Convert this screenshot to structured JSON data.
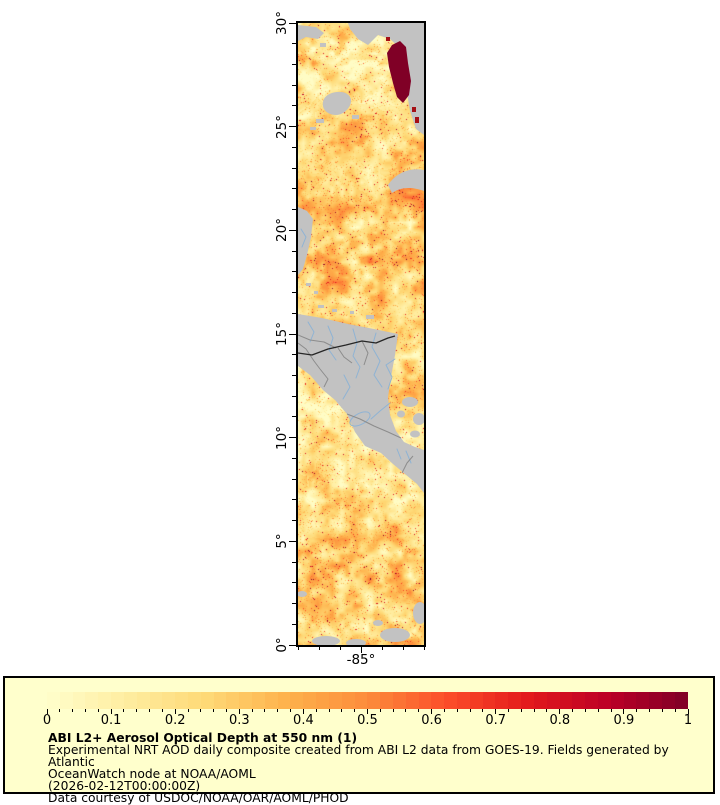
{
  "map": {
    "lat_tick_values": [
      30,
      25,
      20,
      15,
      10,
      5,
      0
    ],
    "lat_tick_labels": [
      "30°",
      "25°",
      "20°",
      "15°",
      "10°",
      "5°",
      "0°"
    ],
    "lat_minor_step_deg": 1,
    "lat_range": [
      0,
      30
    ],
    "lon_range": [
      -88,
      -82
    ],
    "lon_minor_tick_values": [
      -88,
      -87,
      -86,
      -85,
      -84,
      -83,
      -82
    ],
    "lon_labeled_tick_value": -85,
    "lon_tick_label": "-85°",
    "colors": {
      "land": "#c2c2c2",
      "no_data_cloud": "#b8b8b8",
      "country_border": "#8c8c8c",
      "dark_border": "#262626",
      "river": "#8fb3d4",
      "axis": "#000000",
      "high_aod_patch": "#800026",
      "high_aod_patch2": "#a50f15"
    }
  },
  "legend": {
    "background": "#ffffcc",
    "border_color": "#000000",
    "title": "ABI L2+ Aerosol Optical Depth at 550 nm (1)",
    "lines": [
      "Experimental NRT AOD daily composite created from ABI L2 data from GOES-19. Fields generated by Atlantic",
      "OceanWatch node at NOAA/AOML",
      "(2026-02-12T00:00:00Z)",
      "Data courtesy of USDOC/NOAA/OAR/AOML/PHOD"
    ],
    "colorbar": {
      "min": 0,
      "max": 1,
      "tick_labels": [
        "0",
        "0.1",
        "0.2",
        "0.3",
        "0.4",
        "0.5",
        "0.6",
        "0.7",
        "0.8",
        "0.9",
        "1"
      ],
      "minor_step": 0.02,
      "segments": 50,
      "palette": [
        "#ffffcc",
        "#ffeda0",
        "#fed976",
        "#feb24c",
        "#fd8d3c",
        "#fc4e2a",
        "#e31a1c",
        "#bd0026",
        "#800026"
      ]
    }
  },
  "chart_data": {
    "type": "heatmap",
    "title": "ABI L2+ Aerosol Optical Depth at 550 nm (1)",
    "variable": "Aerosol Optical Depth at 550 nm",
    "satellite": "GOES-19",
    "timestamp": "2026-02-12T00:00:00Z",
    "geo_extent": {
      "lat_min": 0,
      "lat_max": 30,
      "lon_min": -88,
      "lon_max": -82
    },
    "lat_axis_ticks_deg": [
      0,
      5,
      10,
      15,
      20,
      25,
      30
    ],
    "lon_axis_labeled_tick_deg": -85,
    "colorbar_range": [
      0,
      1
    ],
    "colorbar_tick_values": [
      0,
      0.1,
      0.2,
      0.3,
      0.4,
      0.5,
      0.6,
      0.7,
      0.8,
      0.9,
      1
    ],
    "colorbar_palette_name": "YlOrRd",
    "legend_note": "Experimental NRT AOD daily composite created from ABI L2 data from GOES-19. Fields generated by Atlantic OceanWatch node at NOAA/AOML (2026-02-12T00:00:00Z). Data courtesy of USDOC/NOAA/OAR/AOML/PHOD"
  }
}
